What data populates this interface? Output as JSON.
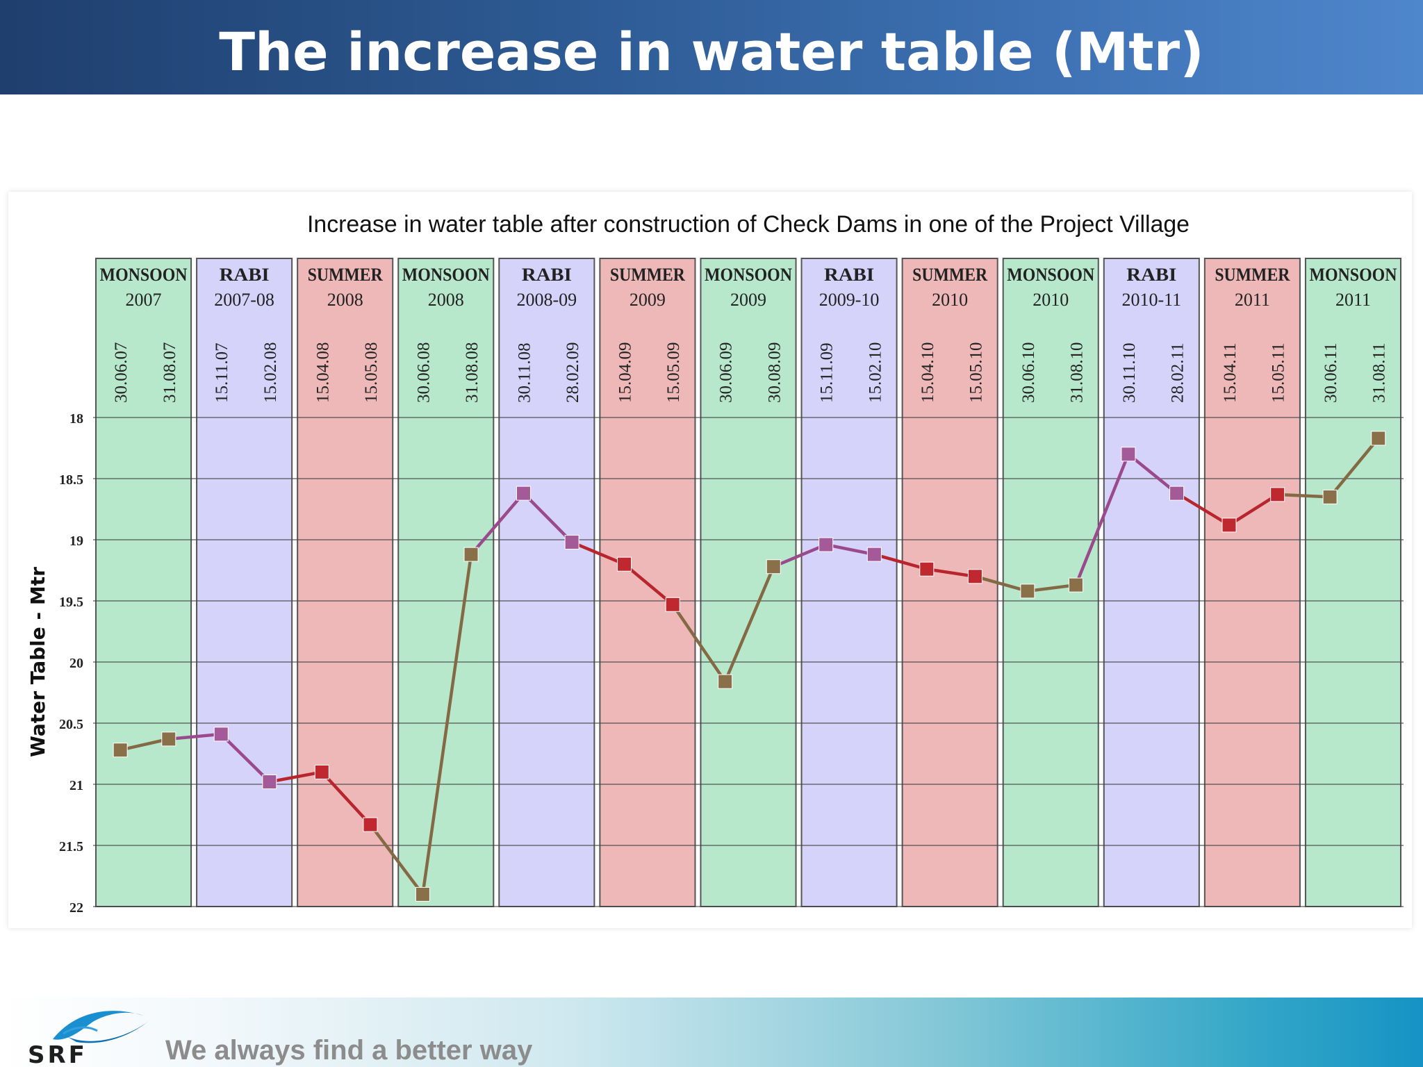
{
  "header": {
    "title": "The increase in water table (Mtr)"
  },
  "footer": {
    "tagline": "We always find a better way",
    "logo_text": "SRF"
  },
  "colors": {
    "MONSOON": "#b8e8cc",
    "RABI": "#d6d3fa",
    "SUMMER": "#eeb8b8",
    "line_monsoon": "#846a44",
    "line_rabi": "#9a4a8c",
    "line_summer": "#b8252d",
    "marker_monsoon": "#8a7048",
    "marker_rabi": "#a45a98",
    "marker_summer": "#c0282f"
  },
  "chart_data": {
    "type": "line",
    "title": "Increase in water table after construction of Check Dams in one of the Project Village",
    "ylabel": "Water Table - Mtr",
    "ylim": [
      18,
      22
    ],
    "y_inverted": true,
    "yticks": [
      "18",
      "18.5",
      "19",
      "19.5",
      "20",
      "20.5",
      "21",
      "21.5",
      "22"
    ],
    "seasons": [
      {
        "name": "MONSOON",
        "year": "2007",
        "dates": [
          "30.06.07",
          "31.08.07"
        ],
        "values": [
          20.72,
          20.63
        ]
      },
      {
        "name": "RABI",
        "year": "2007-08",
        "dates": [
          "15.11.07",
          "15.02.08"
        ],
        "values": [
          20.59,
          20.98
        ]
      },
      {
        "name": "SUMMER",
        "year": "2008",
        "dates": [
          "15.04.08",
          "15.05.08"
        ],
        "values": [
          20.9,
          21.33
        ]
      },
      {
        "name": "MONSOON",
        "year": "2008",
        "dates": [
          "30.06.08",
          "31.08.08"
        ],
        "values": [
          21.9,
          19.12
        ]
      },
      {
        "name": "RABI",
        "year": "2008-09",
        "dates": [
          "30.11.08",
          "28.02.09"
        ],
        "values": [
          18.62,
          19.02
        ]
      },
      {
        "name": "SUMMER",
        "year": "2009",
        "dates": [
          "15.04.09",
          "15.05.09"
        ],
        "values": [
          19.2,
          19.53
        ]
      },
      {
        "name": "MONSOON",
        "year": "2009",
        "dates": [
          "30.06.09",
          "30.08.09"
        ],
        "values": [
          20.16,
          19.22
        ]
      },
      {
        "name": "RABI",
        "year": "2009-10",
        "dates": [
          "15.11.09",
          "15.02.10"
        ],
        "values": [
          19.04,
          19.12
        ]
      },
      {
        "name": "SUMMER",
        "year": "2010",
        "dates": [
          "15.04.10",
          "15.05.10"
        ],
        "values": [
          19.24,
          19.3
        ]
      },
      {
        "name": "MONSOON",
        "year": "2010",
        "dates": [
          "30.06.10",
          "31.08.10"
        ],
        "values": [
          19.42,
          19.37
        ]
      },
      {
        "name": "RABI",
        "year": "2010-11",
        "dates": [
          "30.11.10",
          "28.02.11"
        ],
        "values": [
          18.3,
          18.62
        ]
      },
      {
        "name": "SUMMER",
        "year": "2011",
        "dates": [
          "15.04.11",
          "15.05.11"
        ],
        "values": [
          18.88,
          18.63
        ]
      },
      {
        "name": "MONSOON",
        "year": "2011",
        "dates": [
          "30.06.11",
          "31.08.11"
        ],
        "values": [
          18.65,
          18.17
        ]
      }
    ],
    "grid": true
  }
}
